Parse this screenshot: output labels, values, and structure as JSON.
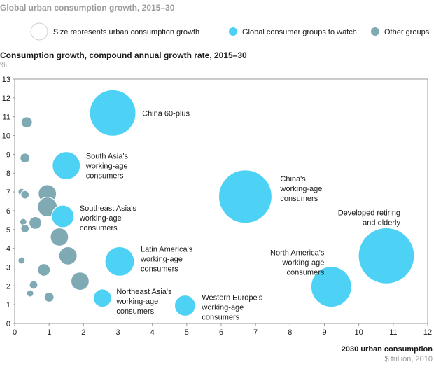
{
  "chart_data": {
    "type": "scatter",
    "title": "Global urban consumption growth, 2015–30",
    "ylabel": "Consumption growth, compound annual growth rate, 2015–30",
    "yunit": "%",
    "xlabel": "2030 urban consumption",
    "xunit": "$ trillion, 2010",
    "xlim": [
      0,
      12
    ],
    "ylim": [
      0,
      13
    ],
    "xticks": [
      "0",
      "1",
      "2",
      "3",
      "4",
      "5",
      "6",
      "7",
      "8",
      "9",
      "10",
      "11",
      "12"
    ],
    "yticks": [
      "0",
      "1",
      "2",
      "3",
      "4",
      "5",
      "6",
      "7",
      "8",
      "9",
      "10",
      "11",
      "12",
      "13"
    ],
    "legend": {
      "size_note": "Size represents urban consumption growth",
      "watch_label": "Global consumer groups to watch",
      "other_label": "Other groups"
    },
    "colors": {
      "watch": "#4dd2f5",
      "other": "#7fa9b3"
    },
    "series": [
      {
        "group": "watch",
        "points": [
          {
            "x": 2.85,
            "y": 11.2,
            "r": 33,
            "label": [
              "China 60-plus"
            ]
          },
          {
            "x": 1.5,
            "y": 8.4,
            "r": 20,
            "label": [
              "South Asia's",
              "working-age",
              "consumers"
            ]
          },
          {
            "x": 1.4,
            "y": 5.7,
            "r": 16,
            "label": [
              "Southeast Asia's",
              "working-age",
              "consumers"
            ]
          },
          {
            "x": 6.7,
            "y": 6.75,
            "r": 38,
            "label": [
              "China's",
              "working-age",
              "consumers"
            ]
          },
          {
            "x": 10.8,
            "y": 3.6,
            "r": 40,
            "label": [
              "Developed retiring",
              "and elderly"
            ]
          },
          {
            "x": 3.05,
            "y": 3.3,
            "r": 21,
            "label": [
              "Latin America's",
              "working-age",
              "consumers"
            ]
          },
          {
            "x": 9.2,
            "y": 1.95,
            "r": 29,
            "label": [
              "North America's",
              "working-age",
              "consumers"
            ]
          },
          {
            "x": 2.55,
            "y": 1.35,
            "r": 13,
            "label": [
              "Northeast Asia's",
              "working-age",
              "consumers"
            ]
          },
          {
            "x": 4.95,
            "y": 0.95,
            "r": 15,
            "label": [
              "Western Europe's",
              "working-age",
              "consumers"
            ]
          }
        ]
      },
      {
        "group": "other",
        "points": [
          {
            "x": 0.35,
            "y": 10.7,
            "r": 8
          },
          {
            "x": 0.3,
            "y": 8.8,
            "r": 7
          },
          {
            "x": 0.95,
            "y": 6.9,
            "r": 13
          },
          {
            "x": 0.2,
            "y": 7.0,
            "r": 5
          },
          {
            "x": 0.3,
            "y": 6.85,
            "r": 6
          },
          {
            "x": 0.95,
            "y": 6.2,
            "r": 14
          },
          {
            "x": 0.25,
            "y": 5.4,
            "r": 5
          },
          {
            "x": 0.6,
            "y": 5.35,
            "r": 9
          },
          {
            "x": 0.3,
            "y": 5.05,
            "r": 6
          },
          {
            "x": 1.3,
            "y": 4.6,
            "r": 13
          },
          {
            "x": 1.55,
            "y": 3.6,
            "r": 13
          },
          {
            "x": 0.2,
            "y": 3.35,
            "r": 5
          },
          {
            "x": 0.85,
            "y": 2.85,
            "r": 9
          },
          {
            "x": 1.9,
            "y": 2.25,
            "r": 13
          },
          {
            "x": 0.55,
            "y": 2.05,
            "r": 6
          },
          {
            "x": 0.45,
            "y": 1.6,
            "r": 5
          },
          {
            "x": 1.0,
            "y": 1.4,
            "r": 7
          }
        ]
      }
    ]
  }
}
